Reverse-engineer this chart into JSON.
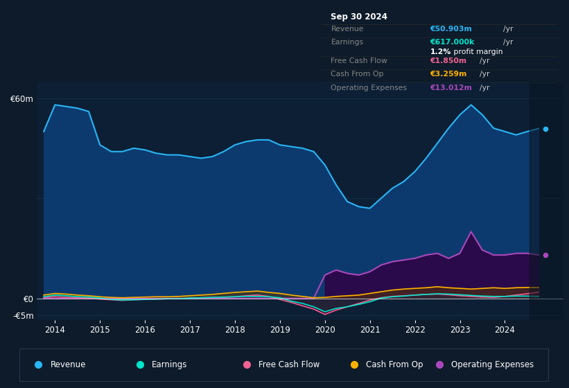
{
  "bg_color": "#0d1b2a",
  "plot_bg_color": "#0c1f35",
  "grid_color": "#1a3a55",
  "years": [
    2013.75,
    2014.0,
    2014.25,
    2014.5,
    2014.75,
    2015.0,
    2015.25,
    2015.5,
    2015.75,
    2016.0,
    2016.25,
    2016.5,
    2016.75,
    2017.0,
    2017.25,
    2017.5,
    2017.75,
    2018.0,
    2018.25,
    2018.5,
    2018.75,
    2019.0,
    2019.25,
    2019.5,
    2019.75,
    2020.0,
    2020.25,
    2020.5,
    2020.75,
    2021.0,
    2021.25,
    2021.5,
    2021.75,
    2022.0,
    2022.25,
    2022.5,
    2022.75,
    2023.0,
    2023.25,
    2023.5,
    2023.75,
    2024.0,
    2024.25,
    2024.5,
    2024.75
  ],
  "revenue": [
    50,
    58,
    57.5,
    57,
    56,
    46,
    44,
    44,
    45,
    44.5,
    43.5,
    43,
    43,
    42.5,
    42,
    42.5,
    44,
    46,
    47,
    47.5,
    47.5,
    46,
    45.5,
    45,
    44,
    40,
    34,
    29,
    27.5,
    27,
    30,
    33,
    35,
    38,
    42,
    46.5,
    51,
    55,
    58,
    55,
    51,
    50,
    49,
    50,
    50.9
  ],
  "earnings": [
    0.5,
    1.0,
    0.8,
    0.5,
    0.4,
    0.1,
    -0.3,
    -0.5,
    -0.4,
    -0.3,
    -0.2,
    -0.1,
    -0.1,
    0.1,
    0.2,
    0.3,
    0.4,
    0.5,
    0.6,
    0.6,
    0.5,
    0.2,
    -0.8,
    -1.5,
    -2.5,
    -4.0,
    -3.0,
    -2.5,
    -1.8,
    -1.0,
    0.1,
    0.5,
    0.7,
    1.0,
    1.2,
    1.4,
    1.3,
    1.1,
    0.9,
    0.7,
    0.6,
    0.6,
    0.7,
    0.7,
    0.617
  ],
  "free_cash_flow": [
    0.3,
    0.5,
    0.3,
    0.2,
    0.1,
    -0.2,
    -0.4,
    -0.6,
    -0.4,
    -0.3,
    -0.2,
    -0.1,
    -0.1,
    0.1,
    0.2,
    0.3,
    0.3,
    0.5,
    0.8,
    1.0,
    0.6,
    -0.3,
    -1.2,
    -2.2,
    -3.2,
    -4.8,
    -3.5,
    -2.5,
    -1.5,
    -0.5,
    0.2,
    0.6,
    0.8,
    1.0,
    1.2,
    1.3,
    1.1,
    0.8,
    0.6,
    0.4,
    0.3,
    0.6,
    1.0,
    1.4,
    1.85
  ],
  "cash_from_op": [
    1.0,
    1.5,
    1.3,
    1.0,
    0.8,
    0.5,
    0.3,
    0.2,
    0.3,
    0.4,
    0.5,
    0.5,
    0.6,
    0.8,
    1.0,
    1.2,
    1.5,
    1.8,
    2.0,
    2.2,
    1.8,
    1.5,
    1.0,
    0.6,
    0.2,
    0.3,
    0.6,
    0.8,
    1.0,
    1.5,
    2.0,
    2.5,
    2.8,
    3.0,
    3.2,
    3.5,
    3.2,
    3.0,
    2.8,
    3.0,
    3.2,
    3.0,
    3.2,
    3.3,
    3.259
  ],
  "operating_expenses": [
    0.0,
    0.0,
    0.0,
    0.0,
    0.0,
    0.0,
    0.0,
    0.0,
    0.0,
    0.0,
    0.0,
    0.0,
    0.0,
    0.0,
    0.0,
    0.0,
    0.0,
    0.0,
    0.0,
    0.0,
    0.0,
    0.0,
    0.0,
    0.0,
    0.0,
    7.0,
    8.5,
    7.5,
    7.0,
    8.0,
    10.0,
    11.0,
    11.5,
    12.0,
    13.0,
    13.5,
    12.0,
    13.5,
    20.0,
    14.5,
    13.0,
    13.0,
    13.5,
    13.5,
    13.012
  ],
  "revenue_color": "#29b6f6",
  "earnings_color": "#00e5cc",
  "free_cash_flow_color": "#f06292",
  "cash_from_op_color": "#ffb300",
  "operating_expenses_color": "#ab47bc",
  "revenue_fill": "#0d3a6e",
  "operating_expenses_fill": "#2a0a4a",
  "ytick_labels": [
    "€60m",
    "€0",
    "-€5m"
  ],
  "ytick_values": [
    60,
    0,
    -5
  ],
  "xtick_labels": [
    "2014",
    "2015",
    "2016",
    "2017",
    "2018",
    "2019",
    "2020",
    "2021",
    "2022",
    "2023",
    "2024"
  ],
  "xtick_values": [
    2014,
    2015,
    2016,
    2017,
    2018,
    2019,
    2020,
    2021,
    2022,
    2023,
    2024
  ],
  "ymin": -6.5,
  "ymax": 65,
  "xmin": 2013.6,
  "xmax": 2025.3,
  "shade_start": 2024.55,
  "info_box": {
    "title": "Sep 30 2024",
    "revenue_label": "Revenue",
    "revenue_value": "€50.903m",
    "earnings_label": "Earnings",
    "earnings_value": "€617.000k",
    "margin_text": "1.2%",
    "margin_text2": " profit margin",
    "fcf_label": "Free Cash Flow",
    "fcf_value": "€1.850m",
    "cfo_label": "Cash From Op",
    "cfo_value": "€3.259m",
    "opex_label": "Operating Expenses",
    "opex_value": "€13.012m"
  },
  "legend_items": [
    {
      "label": "Revenue",
      "color": "#29b6f6"
    },
    {
      "label": "Earnings",
      "color": "#00e5cc"
    },
    {
      "label": "Free Cash Flow",
      "color": "#f06292"
    },
    {
      "label": "Cash From Op",
      "color": "#ffb300"
    },
    {
      "label": "Operating Expenses",
      "color": "#ab47bc"
    }
  ]
}
